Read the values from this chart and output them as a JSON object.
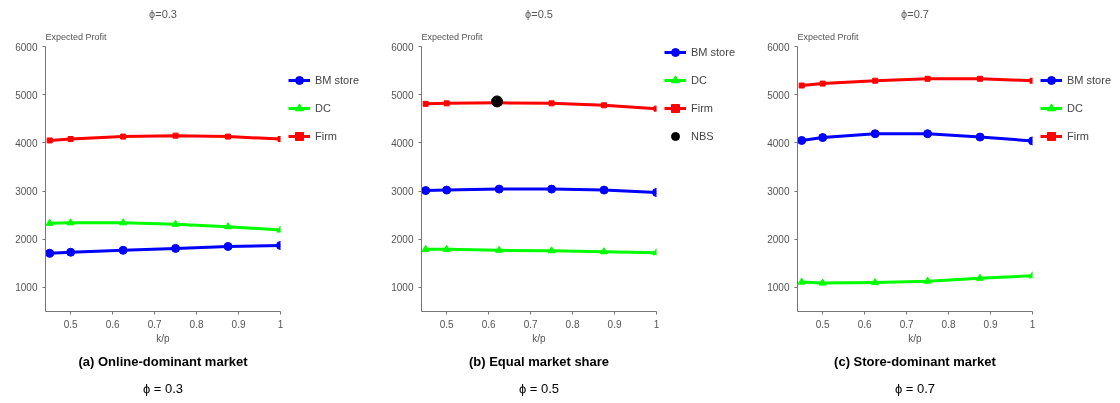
{
  "chart_data": [
    {
      "type": "line",
      "title": "ϕ=0.3",
      "xlabel": "k/p",
      "ylabel": "Expected Profit",
      "x": [
        0.45,
        0.5,
        0.625,
        0.75,
        0.875,
        1.0
      ],
      "xlim": [
        0.44,
        1.0
      ],
      "ylim": [
        500,
        6000
      ],
      "xticks": [
        0.5,
        0.6,
        0.7,
        0.8,
        0.9,
        1.0
      ],
      "yticks": [
        1000,
        2000,
        3000,
        4000,
        5000,
        6000
      ],
      "grid": false,
      "legend": "right",
      "line_style": "solid",
      "series": [
        {
          "name": "BM store",
          "color": "#0000ff",
          "marker": "circle",
          "values": [
            1710,
            1730,
            1770,
            1810,
            1850,
            1870
          ]
        },
        {
          "name": "DC",
          "color": "#00ff00",
          "marker": "triangle",
          "values": [
            2330,
            2340,
            2340,
            2310,
            2260,
            2190
          ]
        },
        {
          "name": "Firm",
          "color": "#ff0000",
          "marker": "square",
          "values": [
            4050,
            4080,
            4130,
            4150,
            4130,
            4080
          ]
        }
      ],
      "annotations": [
        "(a) Online-dominant market",
        "ϕ = 0.3"
      ]
    },
    {
      "type": "line",
      "title": "ϕ=0.5",
      "xlabel": "k/p",
      "ylabel": "Expected Profit",
      "x": [
        0.45,
        0.5,
        0.625,
        0.75,
        0.875,
        1.0
      ],
      "xlim": [
        0.44,
        1.0
      ],
      "ylim": [
        500,
        6000
      ],
      "xticks": [
        0.5,
        0.6,
        0.7,
        0.8,
        0.9,
        1.0
      ],
      "yticks": [
        1000,
        2000,
        3000,
        4000,
        5000,
        6000
      ],
      "grid": false,
      "legend": "right",
      "line_style": "solid",
      "series": [
        {
          "name": "BM store",
          "color": "#0000ff",
          "marker": "circle",
          "values": [
            3010,
            3020,
            3040,
            3040,
            3020,
            2970
          ]
        },
        {
          "name": "DC",
          "color": "#00ff00",
          "marker": "triangle",
          "values": [
            1790,
            1790,
            1770,
            1760,
            1740,
            1720
          ]
        },
        {
          "name": "Firm",
          "color": "#ff0000",
          "marker": "square",
          "values": [
            4810,
            4820,
            4830,
            4820,
            4780,
            4710
          ]
        },
        {
          "name": "NBS",
          "type": "scatter",
          "color": "#000000",
          "marker": "circle",
          "x": [
            0.62
          ],
          "values": [
            4860
          ]
        }
      ],
      "annotations": [
        "(b) Equal market share",
        "ϕ = 0.5"
      ]
    },
    {
      "type": "line",
      "title": "ϕ=0.7",
      "xlabel": "k/p",
      "ylabel": "Expected Profit",
      "x": [
        0.45,
        0.5,
        0.625,
        0.75,
        0.875,
        1.0
      ],
      "xlim": [
        0.44,
        1.0
      ],
      "ylim": [
        500,
        6000
      ],
      "xticks": [
        0.5,
        0.6,
        0.7,
        0.8,
        0.9,
        1.0
      ],
      "yticks": [
        1000,
        2000,
        3000,
        4000,
        5000,
        6000
      ],
      "grid": false,
      "legend": "right",
      "line_style": "solid",
      "series": [
        {
          "name": "BM store",
          "color": "#0000ff",
          "marker": "circle",
          "values": [
            4050,
            4110,
            4190,
            4190,
            4120,
            4040
          ]
        },
        {
          "name": "DC",
          "color": "#00ff00",
          "marker": "triangle",
          "values": [
            1110,
            1090,
            1100,
            1130,
            1190,
            1240
          ]
        },
        {
          "name": "Firm",
          "color": "#ff0000",
          "marker": "square",
          "values": [
            5190,
            5230,
            5290,
            5330,
            5330,
            5290
          ]
        }
      ],
      "annotations": [
        "(c) Store-dominant market",
        "ϕ = 0.7"
      ]
    }
  ]
}
